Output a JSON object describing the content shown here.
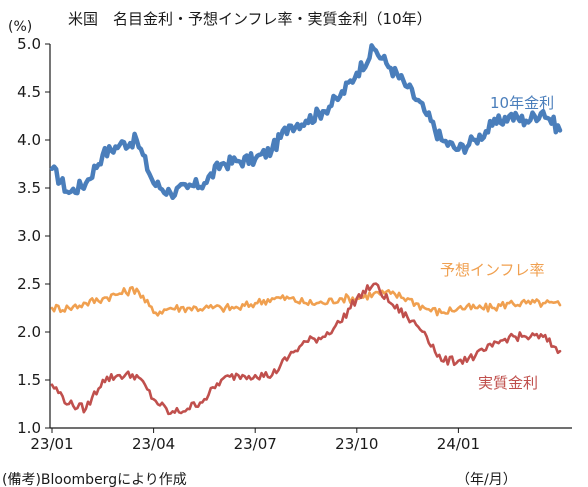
{
  "chart_data": {
    "type": "line",
    "title": "米国　名目金利・予想インフレ率・実質金利（10年）",
    "ylabel": "(%)",
    "xlabel": "（年/月）",
    "source_note": "(備考)Bloombergにより作成",
    "ylim": [
      1.0,
      5.0
    ],
    "yticks": [
      "1.0",
      "1.5",
      "2.0",
      "2.5",
      "3.0",
      "3.5",
      "4.0",
      "4.5",
      "5.0"
    ],
    "xticks": [
      "23/01",
      "23/04",
      "23/07",
      "23/10",
      "24/01"
    ],
    "grid": false,
    "x": [
      "23/01a",
      "23/01b",
      "23/02a",
      "23/02b",
      "23/03a",
      "23/03b",
      "23/04a",
      "23/04b",
      "23/05a",
      "23/05b",
      "23/06a",
      "23/06b",
      "23/07a",
      "23/07b",
      "23/08a",
      "23/08b",
      "23/09a",
      "23/09b",
      "23/10a",
      "23/10b",
      "23/11a",
      "23/11b",
      "23/12a",
      "23/12b",
      "24/01a",
      "24/01b",
      "24/02a",
      "24/02b",
      "24/03a",
      "24/03b",
      "24/04a"
    ],
    "series": [
      {
        "name": "10年金利",
        "color": "#4a7ebb",
        "values": [
          3.7,
          3.45,
          3.55,
          3.85,
          3.95,
          4.0,
          3.55,
          3.45,
          3.5,
          3.55,
          3.75,
          3.78,
          3.8,
          3.9,
          4.15,
          4.2,
          4.3,
          4.45,
          4.7,
          4.95,
          4.75,
          4.55,
          4.3,
          4.0,
          3.9,
          4.0,
          4.15,
          4.25,
          4.2,
          4.3,
          4.1
        ]
      },
      {
        "name": "予想インフレ率",
        "color": "#f0a050",
        "values": [
          2.25,
          2.25,
          2.3,
          2.35,
          2.4,
          2.45,
          2.2,
          2.25,
          2.25,
          2.25,
          2.25,
          2.25,
          2.3,
          2.35,
          2.35,
          2.3,
          2.3,
          2.35,
          2.35,
          2.4,
          2.4,
          2.35,
          2.25,
          2.2,
          2.25,
          2.25,
          2.25,
          2.3,
          2.3,
          2.3,
          2.28
        ]
      },
      {
        "name": "実質金利",
        "color": "#c0504d",
        "values": [
          1.45,
          1.25,
          1.2,
          1.5,
          1.55,
          1.55,
          1.3,
          1.15,
          1.2,
          1.3,
          1.5,
          1.55,
          1.55,
          1.55,
          1.75,
          1.9,
          1.95,
          2.1,
          2.35,
          2.5,
          2.3,
          2.15,
          2.0,
          1.7,
          1.7,
          1.75,
          1.85,
          1.95,
          1.95,
          1.95,
          1.8
        ]
      }
    ]
  }
}
